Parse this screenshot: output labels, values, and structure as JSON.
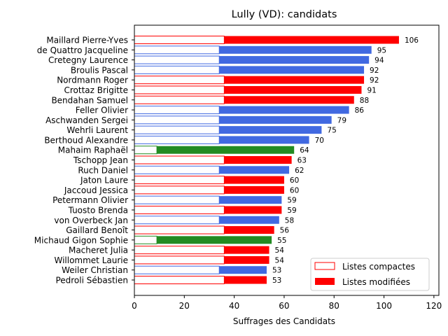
{
  "chart_data": {
    "type": "bar",
    "orientation": "horizontal",
    "stacked": true,
    "title": "Lully (VD): candidats",
    "xlabel": "Suffrages des Candidats",
    "ylabel": "",
    "xlim": [
      0,
      122
    ],
    "xticks": [
      0,
      20,
      40,
      60,
      80,
      100,
      120
    ],
    "legend_position": "bottom-right",
    "legend": [
      {
        "label": "Listes compactes",
        "style": "outline"
      },
      {
        "label": "Listes modifiées",
        "style": "filled"
      }
    ],
    "colors": {
      "red": "#ff0000",
      "blue": "#4169e1",
      "green": "#228b22"
    },
    "categories": [
      "Maillard Pierre-Yves",
      "de Quattro Jacqueline",
      "Cretegny Laurence",
      "Broulis Pascal",
      "Nordmann Roger",
      "Crottaz Brigitte",
      "Bendahan Samuel",
      "Feller Olivier",
      "Aschwanden Sergei",
      "Wehrli Laurent",
      "Berthoud Alexandre",
      "Mahaim Raphaël",
      "Tschopp Jean",
      "Ruch Daniel",
      "Jaton Laure",
      "Jaccoud Jessica",
      "Petermann Olivier",
      "Tuosto Brenda",
      "von Overbeck Jan",
      "Gaillard Benoît",
      "Michaud Gigon Sophie",
      "Macheret Julia",
      "Willommet Laurie",
      "Weiler Christian",
      "Pedroli Sébastien"
    ],
    "party_color": [
      "red",
      "blue",
      "blue",
      "blue",
      "red",
      "red",
      "red",
      "blue",
      "blue",
      "blue",
      "blue",
      "green",
      "red",
      "blue",
      "red",
      "red",
      "blue",
      "red",
      "blue",
      "red",
      "green",
      "red",
      "red",
      "blue",
      "red"
    ],
    "series": [
      {
        "name": "Listes compactes",
        "values": [
          36,
          34,
          34,
          34,
          36,
          36,
          36,
          34,
          34,
          34,
          34,
          9,
          36,
          34,
          36,
          36,
          34,
          36,
          34,
          36,
          9,
          36,
          36,
          34,
          36
        ]
      },
      {
        "name": "Listes modifiées",
        "values": [
          70,
          61,
          60,
          58,
          56,
          55,
          52,
          52,
          45,
          41,
          36,
          55,
          27,
          28,
          24,
          24,
          25,
          23,
          24,
          20,
          46,
          18,
          18,
          19,
          17
        ]
      }
    ],
    "totals": [
      106,
      95,
      94,
      92,
      92,
      91,
      88,
      86,
      79,
      75,
      70,
      64,
      63,
      62,
      60,
      60,
      59,
      59,
      58,
      56,
      55,
      54,
      54,
      53,
      53
    ]
  }
}
